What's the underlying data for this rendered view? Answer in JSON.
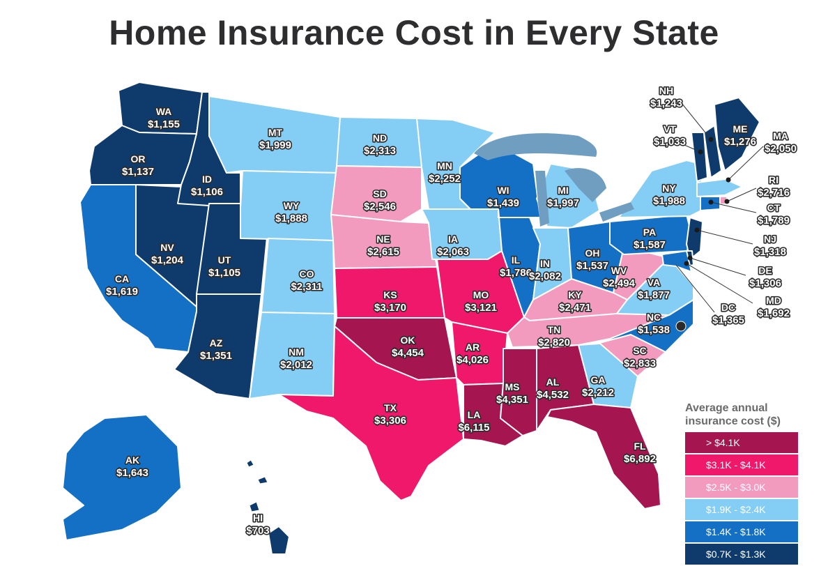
{
  "title": "Home Insurance Cost in Every State",
  "legend": {
    "title_line1": "Average annual",
    "title_line2": "insurance cost ($)",
    "items": [
      {
        "label": "> $4.1K",
        "color": "#a5154f"
      },
      {
        "label": "$3.1K - $4.1K",
        "color": "#f0186a"
      },
      {
        "label": "$2.5K - $3.0K",
        "color": "#f39bbf"
      },
      {
        "label": "$1.9K - $2.4K",
        "color": "#84cdf4"
      },
      {
        "label": "$1.4K - $1.8K",
        "color": "#1470c4"
      },
      {
        "label": "$0.7K - $1.3K",
        "color": "#0e3b6b"
      }
    ]
  },
  "states": [
    {
      "abbr": "WA",
      "cost": "$1,155",
      "tier": 5
    },
    {
      "abbr": "OR",
      "cost": "$1,137",
      "tier": 5
    },
    {
      "abbr": "CA",
      "cost": "$1,619",
      "tier": 4
    },
    {
      "abbr": "NV",
      "cost": "$1,204",
      "tier": 5
    },
    {
      "abbr": "ID",
      "cost": "$1,106",
      "tier": 5
    },
    {
      "abbr": "UT",
      "cost": "$1,105",
      "tier": 5
    },
    {
      "abbr": "AZ",
      "cost": "$1,351",
      "tier": 5
    },
    {
      "abbr": "MT",
      "cost": "$1,999",
      "tier": 3
    },
    {
      "abbr": "WY",
      "cost": "$1,888",
      "tier": 3
    },
    {
      "abbr": "CO",
      "cost": "$2,311",
      "tier": 3
    },
    {
      "abbr": "NM",
      "cost": "$2,012",
      "tier": 3
    },
    {
      "abbr": "ND",
      "cost": "$2,313",
      "tier": 3
    },
    {
      "abbr": "SD",
      "cost": "$2,546",
      "tier": 2
    },
    {
      "abbr": "NE",
      "cost": "$2,615",
      "tier": 2
    },
    {
      "abbr": "KS",
      "cost": "$3,170",
      "tier": 1
    },
    {
      "abbr": "OK",
      "cost": "$4,454",
      "tier": 0
    },
    {
      "abbr": "TX",
      "cost": "$3,306",
      "tier": 1
    },
    {
      "abbr": "MN",
      "cost": "$2,252",
      "tier": 3
    },
    {
      "abbr": "IA",
      "cost": "$2,063",
      "tier": 3
    },
    {
      "abbr": "MO",
      "cost": "$3,121",
      "tier": 1
    },
    {
      "abbr": "AR",
      "cost": "$4,026",
      "tier": 1
    },
    {
      "abbr": "LA",
      "cost": "$6,115",
      "tier": 0
    },
    {
      "abbr": "WI",
      "cost": "$1,439",
      "tier": 4
    },
    {
      "abbr": "IL",
      "cost": "$1,786",
      "tier": 4
    },
    {
      "abbr": "MI",
      "cost": "$1,997",
      "tier": 3
    },
    {
      "abbr": "IN",
      "cost": "$2,082",
      "tier": 3
    },
    {
      "abbr": "OH",
      "cost": "$1,537",
      "tier": 4
    },
    {
      "abbr": "KY",
      "cost": "$2,471",
      "tier": 2
    },
    {
      "abbr": "TN",
      "cost": "$2,820",
      "tier": 2
    },
    {
      "abbr": "MS",
      "cost": "$4,351",
      "tier": 0
    },
    {
      "abbr": "AL",
      "cost": "$4,532",
      "tier": 0
    },
    {
      "abbr": "GA",
      "cost": "$2,212",
      "tier": 3
    },
    {
      "abbr": "FL",
      "cost": "$6,892",
      "tier": 0
    },
    {
      "abbr": "SC",
      "cost": "$2,833",
      "tier": 2
    },
    {
      "abbr": "NC",
      "cost": "$1,538",
      "tier": 4
    },
    {
      "abbr": "VA",
      "cost": "$1,877",
      "tier": 3
    },
    {
      "abbr": "WV",
      "cost": "$2,494",
      "tier": 2
    },
    {
      "abbr": "PA",
      "cost": "$1,587",
      "tier": 4
    },
    {
      "abbr": "NY",
      "cost": "$1,988",
      "tier": 3
    },
    {
      "abbr": "ME",
      "cost": "$1,276",
      "tier": 5
    },
    {
      "abbr": "NH",
      "cost": "$1,243",
      "tier": 5
    },
    {
      "abbr": "VT",
      "cost": "$1,033",
      "tier": 5
    },
    {
      "abbr": "MA",
      "cost": "$2,050",
      "tier": 3
    },
    {
      "abbr": "RI",
      "cost": "$2,716",
      "tier": 2
    },
    {
      "abbr": "CT",
      "cost": "$1,789",
      "tier": 4
    },
    {
      "abbr": "NJ",
      "cost": "$1,318",
      "tier": 5
    },
    {
      "abbr": "DE",
      "cost": "$1,306",
      "tier": 5
    },
    {
      "abbr": "MD",
      "cost": "$1,692",
      "tier": 4
    },
    {
      "abbr": "DC",
      "cost": "$1,365",
      "tier": 5
    },
    {
      "abbr": "AK",
      "cost": "$1,643",
      "tier": 4
    },
    {
      "abbr": "HI",
      "cost": "$703",
      "tier": 5
    }
  ]
}
